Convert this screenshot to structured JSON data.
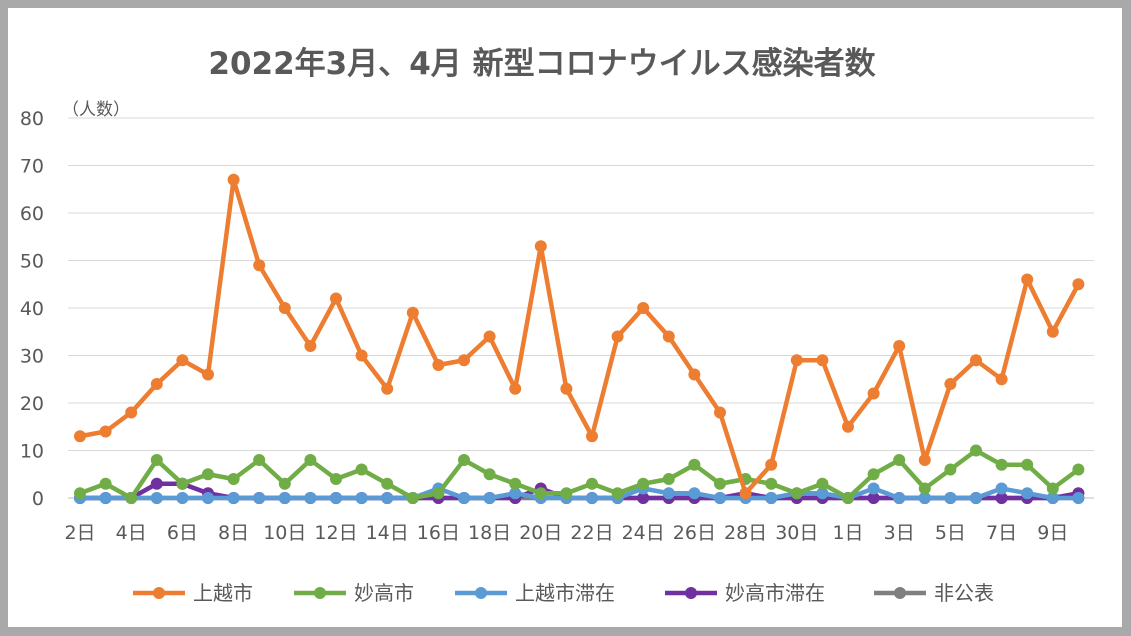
{
  "chart_data": {
    "type": "line",
    "title": "2022年3月、4月 新型コロナウイルス感染者数",
    "ylabel": "（人数）",
    "xlabel": "",
    "ylim": [
      0,
      80
    ],
    "yticks": [
      0,
      10,
      20,
      30,
      40,
      50,
      60,
      70,
      80
    ],
    "grid": true,
    "legend_position": "bottom",
    "categories": [
      "2日",
      "3日",
      "4日",
      "5日",
      "6日",
      "7日",
      "8日",
      "9日",
      "10日",
      "11日",
      "12日",
      "13日",
      "14日",
      "15日",
      "16日",
      "17日",
      "18日",
      "19日",
      "20日",
      "21日",
      "22日",
      "23日",
      "24日",
      "25日",
      "26日",
      "27日",
      "28日",
      "29日",
      "30日",
      "31日",
      "1日",
      "2日",
      "3日",
      "4日",
      "5日",
      "6日",
      "7日",
      "8日",
      "9日",
      "10日"
    ],
    "tick_labels": [
      "2日",
      "4日",
      "6日",
      "8日",
      "10日",
      "12日",
      "14日",
      "16日",
      "18日",
      "20日",
      "22日",
      "24日",
      "26日",
      "28日",
      "30日",
      "1日",
      "3日",
      "5日",
      "7日",
      "9日"
    ],
    "series": [
      {
        "name": "上越市",
        "color": "#ed7d31",
        "values": [
          13,
          14,
          18,
          24,
          29,
          26,
          67,
          49,
          40,
          32,
          42,
          30,
          23,
          39,
          28,
          29,
          34,
          23,
          53,
          23,
          13,
          34,
          40,
          34,
          26,
          18,
          1,
          7,
          29,
          29,
          15,
          22,
          32,
          8,
          24,
          29,
          25,
          46,
          35,
          45
        ]
      },
      {
        "name": "妙高市",
        "color": "#70ad47",
        "values": [
          1,
          3,
          0,
          8,
          3,
          5,
          4,
          8,
          3,
          8,
          4,
          6,
          3,
          0,
          1,
          8,
          5,
          3,
          1,
          1,
          3,
          1,
          3,
          4,
          7,
          3,
          4,
          3,
          1,
          3,
          0,
          5,
          8,
          2,
          6,
          10,
          7,
          7,
          2,
          6
        ]
      },
      {
        "name": "上越市滞在",
        "color": "#5b9bd5",
        "values": [
          0,
          0,
          0,
          0,
          0,
          0,
          0,
          0,
          0,
          0,
          0,
          0,
          0,
          0,
          2,
          0,
          0,
          1,
          0,
          0,
          0,
          0,
          2,
          1,
          1,
          0,
          0,
          0,
          1,
          1,
          0,
          2,
          0,
          0,
          0,
          0,
          2,
          1,
          0,
          0
        ]
      },
      {
        "name": "妙高市滞在",
        "color": "#7030a0",
        "values": [
          0,
          0,
          0,
          3,
          3,
          1,
          0,
          0,
          0,
          0,
          0,
          0,
          0,
          0,
          0,
          0,
          0,
          0,
          2,
          0,
          0,
          0,
          0,
          0,
          0,
          0,
          1,
          0,
          0,
          0,
          0,
          0,
          0,
          0,
          0,
          0,
          0,
          0,
          0,
          1
        ]
      },
      {
        "name": "非公表",
        "color": "#7f7f7f",
        "values": [
          0,
          0,
          0,
          0,
          0,
          0,
          0,
          0,
          0,
          0,
          0,
          0,
          0,
          0,
          0,
          0,
          0,
          0,
          0,
          0,
          0,
          0,
          0,
          0,
          0,
          0,
          0,
          0,
          0,
          0,
          0,
          0,
          0,
          0,
          0,
          0,
          0,
          0,
          0,
          0
        ]
      }
    ]
  }
}
